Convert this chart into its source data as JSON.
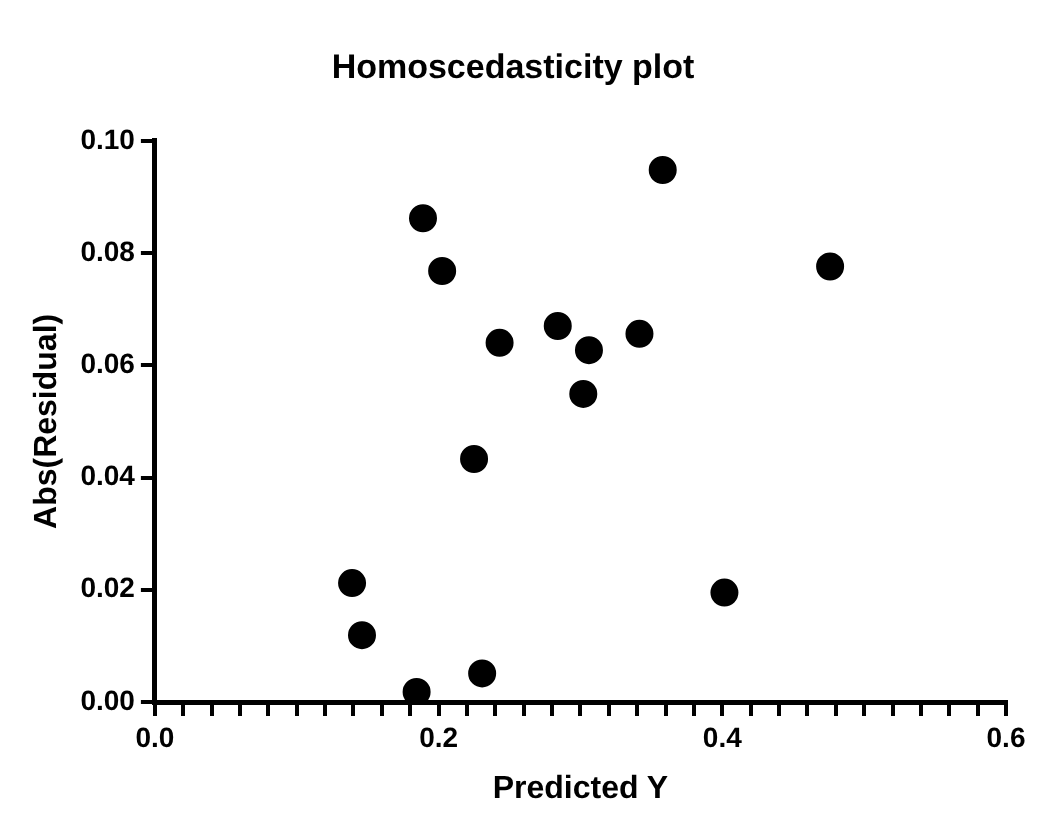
{
  "chart_data": {
    "type": "scatter",
    "title": "Homoscedasticity plot",
    "xlabel": "Predicted Y",
    "ylabel": "Abs(Residual)",
    "x": [
      0.189,
      0.2025,
      0.243,
      0.225,
      0.139,
      0.146,
      0.1845,
      0.2307,
      0.358,
      0.476,
      0.284,
      0.306,
      0.302,
      0.3416,
      0.4015
    ],
    "series": [
      {
        "color": "#000000",
        "values": [
          0.0862,
          0.0768,
          0.064,
          0.0433,
          0.0212,
          0.0119,
          0.0018,
          0.0051,
          0.0948,
          0.0776,
          0.067,
          0.0627,
          0.0549,
          0.0656,
          0.0195
        ]
      }
    ],
    "xlim": [
      0,
      0.6
    ],
    "ylim": [
      0,
      0.1
    ],
    "xticks": [
      {
        "value": 0,
        "label": "0.0"
      },
      {
        "value": 0.02,
        "label": null
      },
      {
        "value": 0.04,
        "label": null
      },
      {
        "value": 0.06,
        "label": null
      },
      {
        "value": 0.08,
        "label": null
      },
      {
        "value": 0.1,
        "label": null
      },
      {
        "value": 0.12,
        "label": null
      },
      {
        "value": 0.14,
        "label": null
      },
      {
        "value": 0.16,
        "label": null
      },
      {
        "value": 0.18,
        "label": null
      },
      {
        "value": 0.2,
        "label": "0.2"
      },
      {
        "value": 0.22,
        "label": null
      },
      {
        "value": 0.24,
        "label": null
      },
      {
        "value": 0.26,
        "label": null
      },
      {
        "value": 0.28,
        "label": null
      },
      {
        "value": 0.3,
        "label": null
      },
      {
        "value": 0.32,
        "label": null
      },
      {
        "value": 0.34,
        "label": null
      },
      {
        "value": 0.36,
        "label": null
      },
      {
        "value": 0.38,
        "label": null
      },
      {
        "value": 0.4,
        "label": "0.4"
      },
      {
        "value": 0.42,
        "label": null
      },
      {
        "value": 0.44,
        "label": null
      },
      {
        "value": 0.46,
        "label": null
      },
      {
        "value": 0.48,
        "label": null
      },
      {
        "value": 0.5,
        "label": null
      },
      {
        "value": 0.52,
        "label": null
      },
      {
        "value": 0.54,
        "label": null
      },
      {
        "value": 0.56,
        "label": null
      },
      {
        "value": 0.58,
        "label": null
      },
      {
        "value": 0.6,
        "label": "0.6"
      }
    ],
    "yticks": [
      {
        "value": 0,
        "label": "0.00"
      },
      {
        "value": 0.02,
        "label": "0.02"
      },
      {
        "value": 0.04,
        "label": "0.04"
      },
      {
        "value": 0.06,
        "label": "0.06"
      },
      {
        "value": 0.08,
        "label": "0.08"
      },
      {
        "value": 0.1,
        "label": "0.10"
      }
    ],
    "grid": false,
    "legend": false,
    "marker": "circle"
  }
}
